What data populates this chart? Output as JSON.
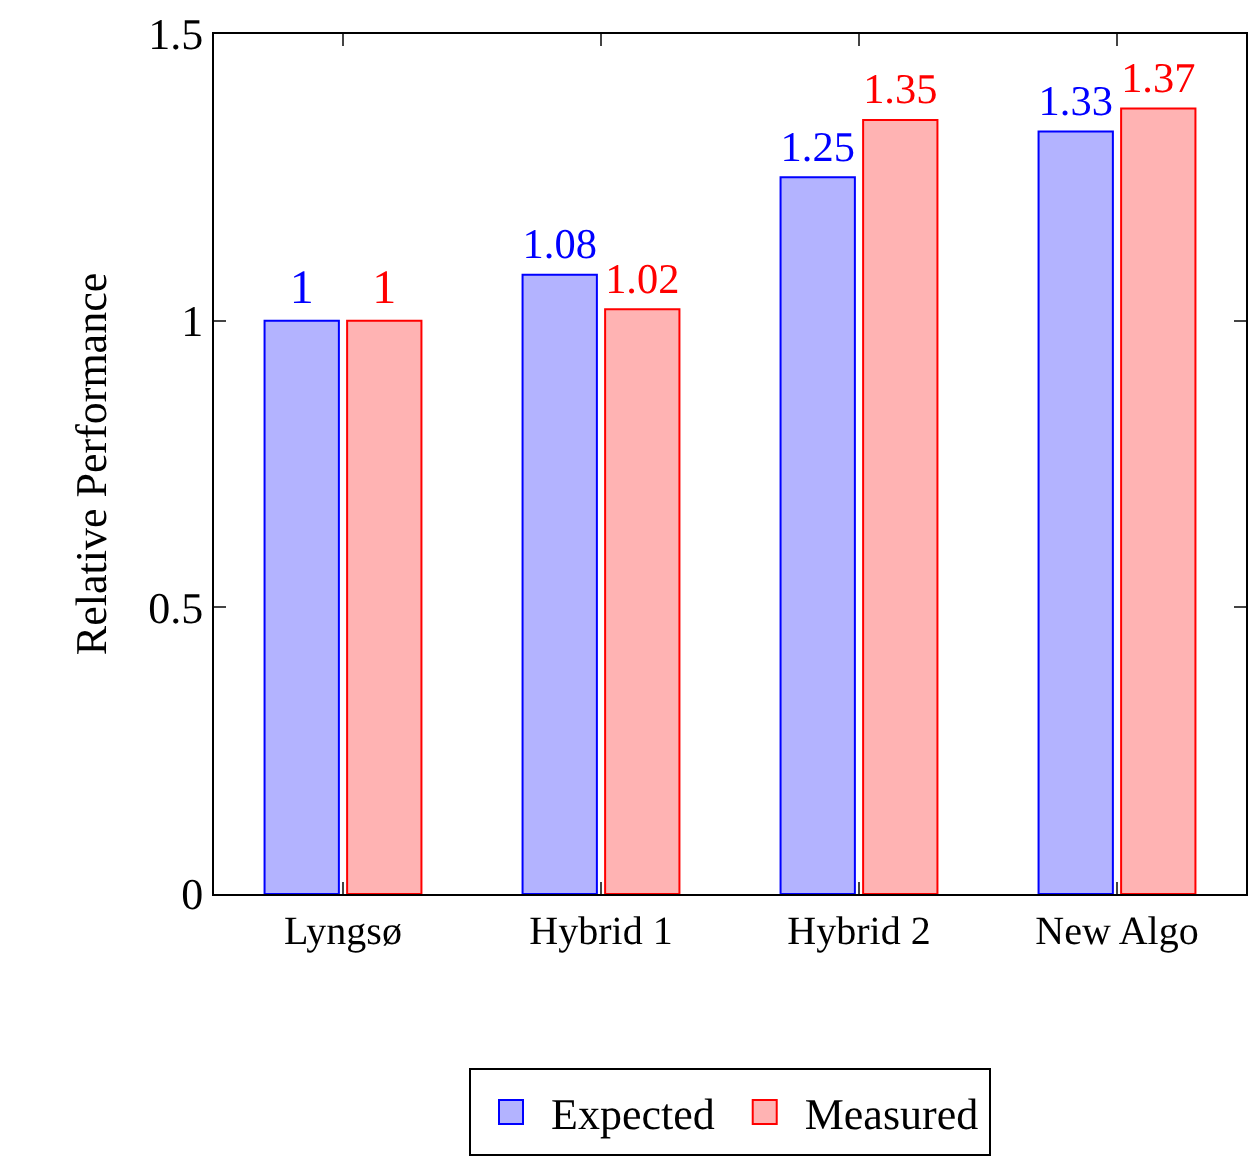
{
  "chart_data": {
    "type": "bar",
    "ylabel": "Relative Performance",
    "categories": [
      "Lyngsø",
      "Hybrid 1",
      "Hybrid 2",
      "New Algo"
    ],
    "series": [
      {
        "name": "Expected",
        "color": "#b3b3ff",
        "values": [
          1,
          1.08,
          1.25,
          1.33
        ]
      },
      {
        "name": "Measured",
        "color": "#ffb3b3",
        "values": [
          1,
          1.02,
          1.35,
          1.37
        ]
      }
    ],
    "ylim": [
      0,
      1.5
    ],
    "yticks": [
      0,
      0.5,
      1,
      1.5
    ],
    "grid": false,
    "legend": "bottom",
    "data_labels": true
  }
}
